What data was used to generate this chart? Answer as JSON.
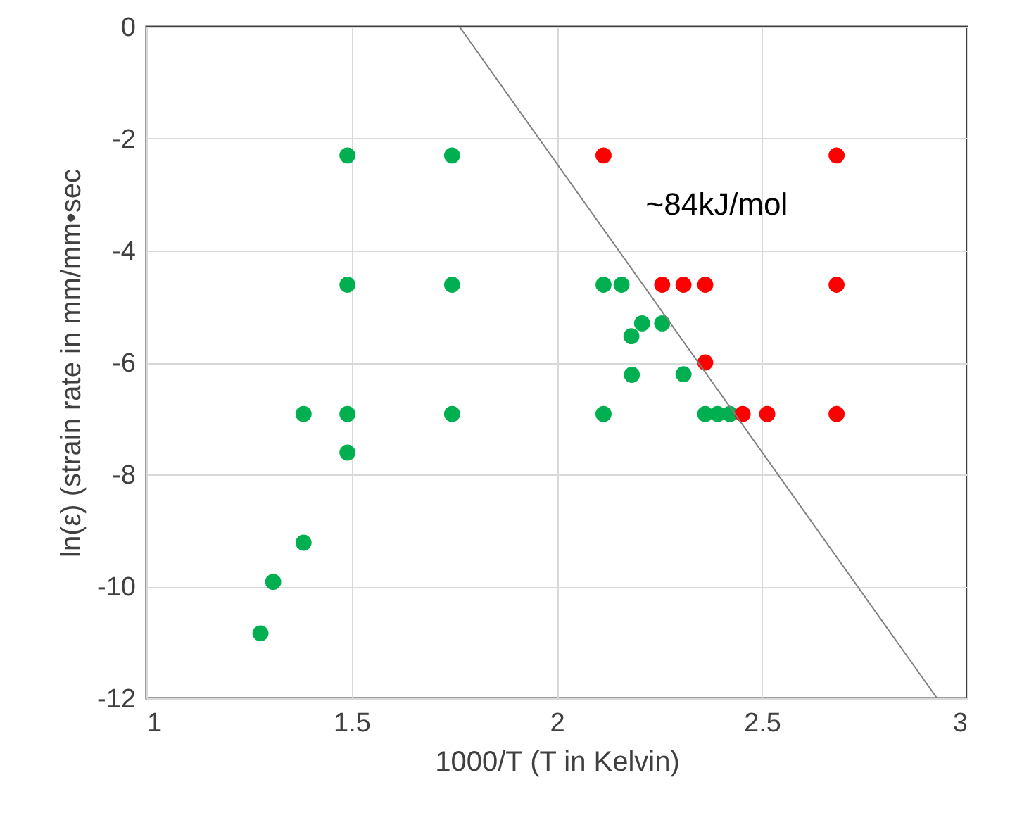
{
  "chart_data": {
    "type": "scatter",
    "xlabel": "1000/T (T in Kelvin)",
    "ylabel": "ln(ε) (strain rate in mm/mm•sec",
    "series": [
      {
        "color": "#00b050",
        "x": [
          1.49,
          1.745,
          1.49,
          1.745,
          1.383,
          1.49,
          1.745,
          1.49,
          1.383,
          1.309,
          1.278,
          2.114,
          2.158,
          2.208,
          2.182,
          2.257,
          2.183,
          2.309,
          2.114,
          2.362,
          2.392,
          2.422
        ],
        "values": [
          -2.3,
          -2.3,
          -4.61,
          -4.61,
          -6.92,
          -6.92,
          -6.92,
          -7.61,
          -9.22,
          -9.92,
          -10.84,
          -4.61,
          -4.61,
          -5.3,
          -5.53,
          -5.3,
          -6.22,
          -6.21,
          -6.92,
          -6.92,
          -6.92,
          -6.92
        ]
      },
      {
        "color": "#ff0000",
        "x": [
          2.114,
          2.682,
          2.257,
          2.309,
          2.362,
          2.682,
          2.362,
          2.453,
          2.513,
          2.682
        ],
        "values": [
          -2.3,
          -2.3,
          -4.61,
          -4.61,
          -4.61,
          -4.61,
          -6.0,
          -6.92,
          -6.92,
          -6.92
        ]
      },
      {
        "type": "line",
        "color": "#808080",
        "x": [
          1.763,
          2.927
        ],
        "values": [
          0,
          -12
        ]
      }
    ],
    "annotations": [
      "~84kJ/mol"
    ],
    "xlim": [
      1,
      3
    ],
    "xticks": [
      1,
      1.5,
      2,
      2.5,
      3
    ],
    "ylim": [
      -12,
      0
    ],
    "yticks": [
      -12,
      -10,
      -8,
      -6,
      -4,
      -2,
      0
    ],
    "grid": true
  }
}
